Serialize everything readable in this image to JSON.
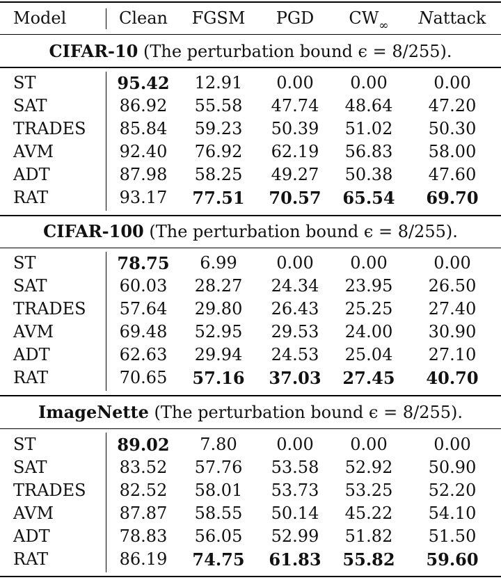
{
  "header": {
    "model": "Model",
    "columns": [
      "Clean",
      "FGSM",
      "PGD",
      "CW",
      "attack"
    ],
    "cw_subscript": "∞",
    "nattack_prefix": "N"
  },
  "sections": [
    {
      "dataset": "CIFAR-10",
      "caption_rest": " (The perturbation bound ϵ = 8/255).",
      "rows": [
        {
          "model": "ST",
          "values": [
            "95.42",
            "12.91",
            "0.00",
            "0.00",
            "0.00"
          ],
          "bold": [
            true,
            false,
            false,
            false,
            false
          ]
        },
        {
          "model": "SAT",
          "values": [
            "86.92",
            "55.58",
            "47.74",
            "48.64",
            "47.20"
          ],
          "bold": [
            false,
            false,
            false,
            false,
            false
          ]
        },
        {
          "model": "TRADES",
          "values": [
            "85.84",
            "59.23",
            "50.39",
            "51.02",
            "50.30"
          ],
          "bold": [
            false,
            false,
            false,
            false,
            false
          ]
        },
        {
          "model": "AVM",
          "values": [
            "92.40",
            "76.92",
            "62.19",
            "56.83",
            "58.00"
          ],
          "bold": [
            false,
            false,
            false,
            false,
            false
          ]
        },
        {
          "model": "ADT",
          "values": [
            "87.98",
            "58.25",
            "49.27",
            "50.38",
            "47.60"
          ],
          "bold": [
            false,
            false,
            false,
            false,
            false
          ]
        },
        {
          "model": "RAT",
          "values": [
            "93.17",
            "77.51",
            "70.57",
            "65.54",
            "69.70"
          ],
          "bold": [
            false,
            true,
            true,
            true,
            true
          ]
        }
      ]
    },
    {
      "dataset": "CIFAR-100",
      "caption_rest": " (The perturbation bound ϵ = 8/255).",
      "rows": [
        {
          "model": "ST",
          "values": [
            "78.75",
            "6.99",
            "0.00",
            "0.00",
            "0.00"
          ],
          "bold": [
            true,
            false,
            false,
            false,
            false
          ]
        },
        {
          "model": "SAT",
          "values": [
            "60.03",
            "28.27",
            "24.34",
            "23.95",
            "26.50"
          ],
          "bold": [
            false,
            false,
            false,
            false,
            false
          ]
        },
        {
          "model": "TRADES",
          "values": [
            "57.64",
            "29.80",
            "26.43",
            "25.25",
            "27.40"
          ],
          "bold": [
            false,
            false,
            false,
            false,
            false
          ]
        },
        {
          "model": "AVM",
          "values": [
            "69.48",
            "52.95",
            "29.53",
            "24.00",
            "30.90"
          ],
          "bold": [
            false,
            false,
            false,
            false,
            false
          ]
        },
        {
          "model": "ADT",
          "values": [
            "62.63",
            "29.94",
            "24.53",
            "25.04",
            "27.10"
          ],
          "bold": [
            false,
            false,
            false,
            false,
            false
          ]
        },
        {
          "model": "RAT",
          "values": [
            "70.65",
            "57.16",
            "37.03",
            "27.45",
            "40.70"
          ],
          "bold": [
            false,
            true,
            true,
            true,
            true
          ]
        }
      ]
    },
    {
      "dataset": "ImageNette",
      "caption_rest": " (The perturbation bound ϵ = 8/255).",
      "rows": [
        {
          "model": "ST",
          "values": [
            "89.02",
            "7.80",
            "0.00",
            "0.00",
            "0.00"
          ],
          "bold": [
            true,
            false,
            false,
            false,
            false
          ]
        },
        {
          "model": "SAT",
          "values": [
            "83.52",
            "57.76",
            "53.58",
            "52.92",
            "50.90"
          ],
          "bold": [
            false,
            false,
            false,
            false,
            false
          ]
        },
        {
          "model": "TRADES",
          "values": [
            "82.52",
            "58.01",
            "53.73",
            "53.25",
            "52.20"
          ],
          "bold": [
            false,
            false,
            false,
            false,
            false
          ]
        },
        {
          "model": "AVM",
          "values": [
            "87.87",
            "58.55",
            "50.14",
            "45.22",
            "54.10"
          ],
          "bold": [
            false,
            false,
            false,
            false,
            false
          ]
        },
        {
          "model": "ADT",
          "values": [
            "78.83",
            "56.05",
            "52.99",
            "51.82",
            "51.50"
          ],
          "bold": [
            false,
            false,
            false,
            false,
            false
          ]
        },
        {
          "model": "RAT",
          "values": [
            "86.19",
            "74.75",
            "61.83",
            "55.82",
            "59.60"
          ],
          "bold": [
            false,
            true,
            true,
            true,
            true
          ]
        }
      ]
    }
  ]
}
